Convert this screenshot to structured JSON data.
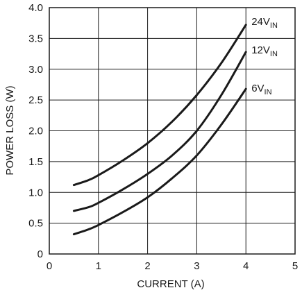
{
  "chart_data": {
    "type": "line",
    "xlabel": "CURRENT (A)",
    "ylabel": "POWER LOSS (W)",
    "xlim": [
      0,
      5
    ],
    "ylim": [
      0,
      4.0
    ],
    "x_ticks": [
      "0",
      "1",
      "2",
      "3",
      "4",
      "5"
    ],
    "y_ticks": [
      "0",
      "0.5",
      "1.0",
      "1.5",
      "2.0",
      "2.5",
      "3.0",
      "3.5",
      "4.0"
    ],
    "grid": true,
    "series": [
      {
        "name": "24V",
        "name_sub": "IN",
        "x": [
          0.5,
          0.8,
          1.0,
          1.5,
          2.0,
          2.5,
          3.0,
          3.5,
          4.0
        ],
        "y": [
          1.12,
          1.2,
          1.28,
          1.52,
          1.8,
          2.15,
          2.58,
          3.1,
          3.72
        ]
      },
      {
        "name": "12V",
        "name_sub": "IN",
        "x": [
          0.5,
          0.8,
          1.0,
          1.5,
          2.0,
          2.5,
          3.0,
          3.5,
          4.0
        ],
        "y": [
          0.7,
          0.76,
          0.83,
          1.05,
          1.3,
          1.6,
          2.0,
          2.58,
          3.28
        ]
      },
      {
        "name": "6V",
        "name_sub": "IN",
        "x": [
          0.5,
          0.8,
          1.0,
          1.5,
          2.0,
          2.5,
          3.0,
          3.5,
          4.0
        ],
        "y": [
          0.32,
          0.4,
          0.47,
          0.68,
          0.92,
          1.23,
          1.6,
          2.1,
          2.68
        ]
      }
    ]
  }
}
